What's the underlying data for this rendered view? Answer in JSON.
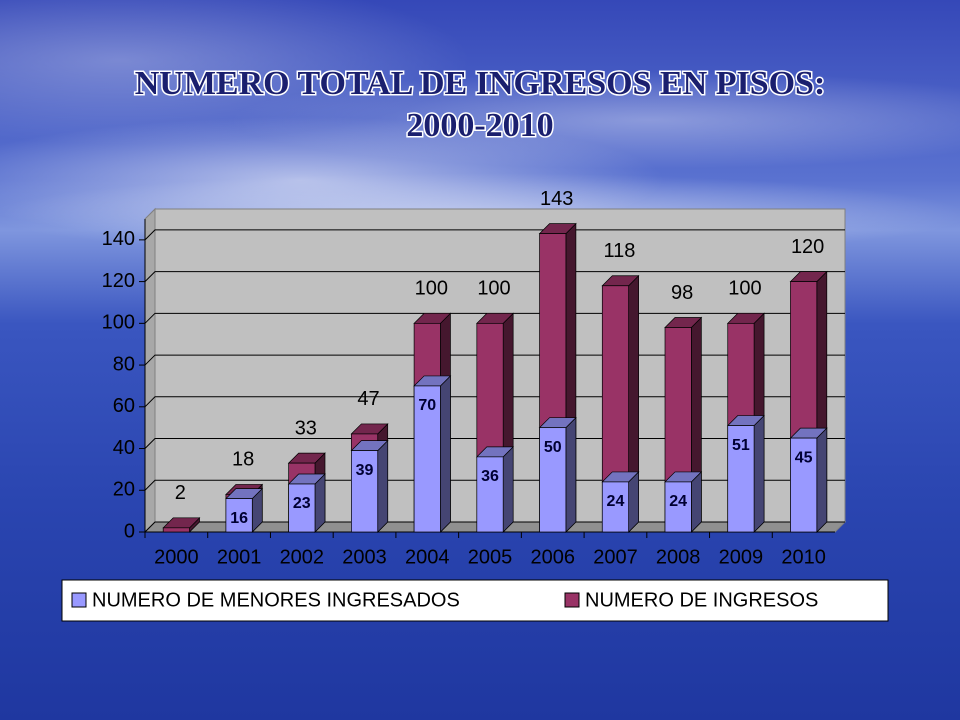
{
  "chart_data": {
    "type": "bar",
    "title": "NUMERO TOTAL DE INGRESOS EN PISOS: 2000-2010",
    "categories": [
      "2000",
      "2001",
      "2002",
      "2003",
      "2004",
      "2005",
      "2006",
      "2007",
      "2008",
      "2009",
      "2010"
    ],
    "series": [
      {
        "name": "NUMERO DE MENORES INGRESADOS",
        "color": "#9999ff",
        "values": [
          null,
          16,
          23,
          39,
          70,
          36,
          50,
          24,
          24,
          51,
          45
        ]
      },
      {
        "name": "NUMERO DE INGRESOS",
        "color": "#993366",
        "values": [
          2,
          18,
          33,
          47,
          100,
          100,
          143,
          118,
          98,
          100,
          120
        ]
      }
    ],
    "ylim": [
      0,
      150
    ],
    "yticks": [
      0,
      20,
      40,
      60,
      80,
      100,
      120,
      140
    ],
    "grid": true,
    "legend": "bottom"
  }
}
